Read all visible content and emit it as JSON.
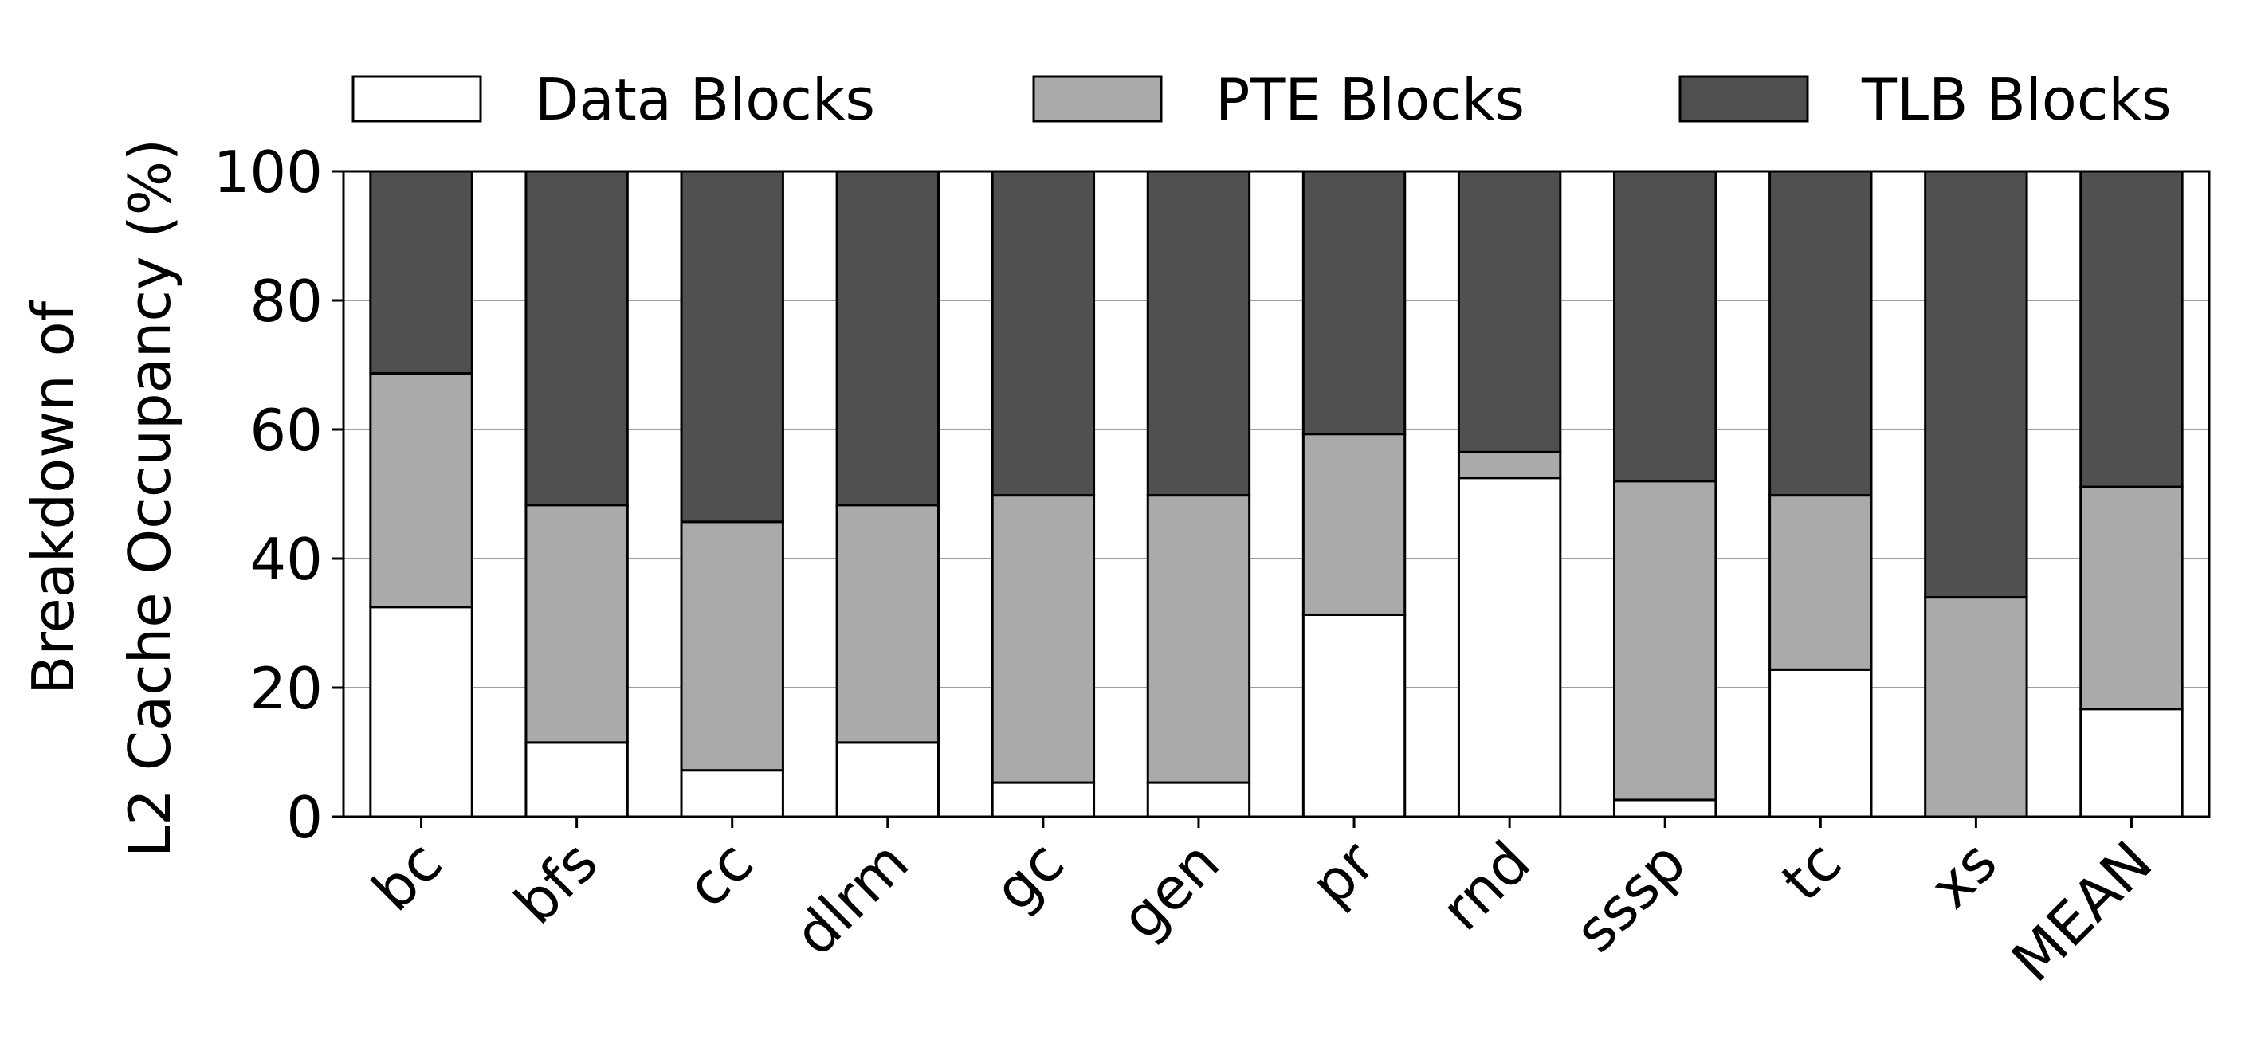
{
  "chart_data": {
    "type": "bar",
    "stacked": true,
    "title": "",
    "xlabel": "",
    "ylabel_lines": [
      "Breakdown of",
      "L2 Cache Occupancy (%)"
    ],
    "ylim": [
      0,
      100
    ],
    "yticks": [
      0,
      20,
      40,
      60,
      80,
      100
    ],
    "grid": "horizontal",
    "legend_position": "top",
    "categories": [
      "bc",
      "bfs",
      "cc",
      "dlrm",
      "gc",
      "gen",
      "pr",
      "rnd",
      "sssp",
      "tc",
      "xs",
      "MEAN"
    ],
    "series": [
      {
        "name": "Data Blocks",
        "color": "#ffffff",
        "values": [
          32.5,
          11.5,
          7.2,
          11.5,
          5.3,
          5.3,
          31.3,
          52.5,
          2.6,
          22.8,
          0.0,
          16.7
        ]
      },
      {
        "name": "PTE Blocks",
        "color": "#aaaaaa",
        "values": [
          36.2,
          36.8,
          38.5,
          36.8,
          44.5,
          44.5,
          28.0,
          4.0,
          49.4,
          27.0,
          34.0,
          34.4
        ]
      },
      {
        "name": "TLB Blocks",
        "color": "#505050",
        "values": [
          31.3,
          51.7,
          54.3,
          51.7,
          50.2,
          50.2,
          40.7,
          43.5,
          48.0,
          50.2,
          66.0,
          48.9
        ]
      }
    ]
  }
}
